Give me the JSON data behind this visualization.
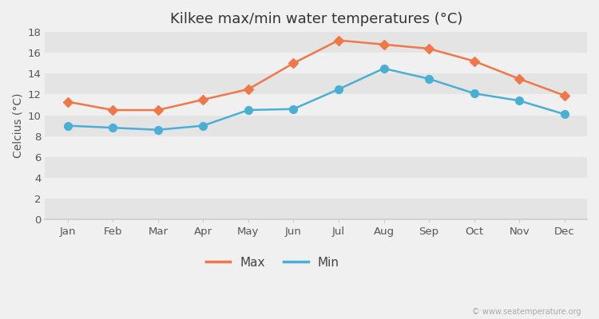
{
  "title": "Kilkee max/min water temperatures (°C)",
  "ylabel": "Celcius (°C)",
  "months": [
    "Jan",
    "Feb",
    "Mar",
    "Apr",
    "May",
    "Jun",
    "Jul",
    "Aug",
    "Sep",
    "Oct",
    "Nov",
    "Dec"
  ],
  "max_temps": [
    11.3,
    10.5,
    10.5,
    11.5,
    12.5,
    15.0,
    17.2,
    16.8,
    16.4,
    15.2,
    13.5,
    11.9
  ],
  "min_temps": [
    9.0,
    8.8,
    8.6,
    9.0,
    10.5,
    10.6,
    12.5,
    14.5,
    13.5,
    12.1,
    11.4,
    10.1
  ],
  "max_color": "#f07848",
  "min_color": "#4aafd5",
  "max_marker": "D",
  "min_marker": "o",
  "marker_size_max": 6,
  "marker_size_min": 7,
  "line_width": 1.8,
  "ylim": [
    0,
    18
  ],
  "yticks": [
    0,
    2,
    4,
    6,
    8,
    10,
    12,
    14,
    16,
    18
  ],
  "outer_bg": "#f0f0f0",
  "band_light": "#f0f0f0",
  "band_dark": "#e4e4e4",
  "spine_color": "#cccccc",
  "legend_labels": [
    "Max",
    "Min"
  ],
  "watermark": "© www.seatemperature.org",
  "title_fontsize": 13,
  "axis_label_fontsize": 10,
  "tick_fontsize": 9.5
}
